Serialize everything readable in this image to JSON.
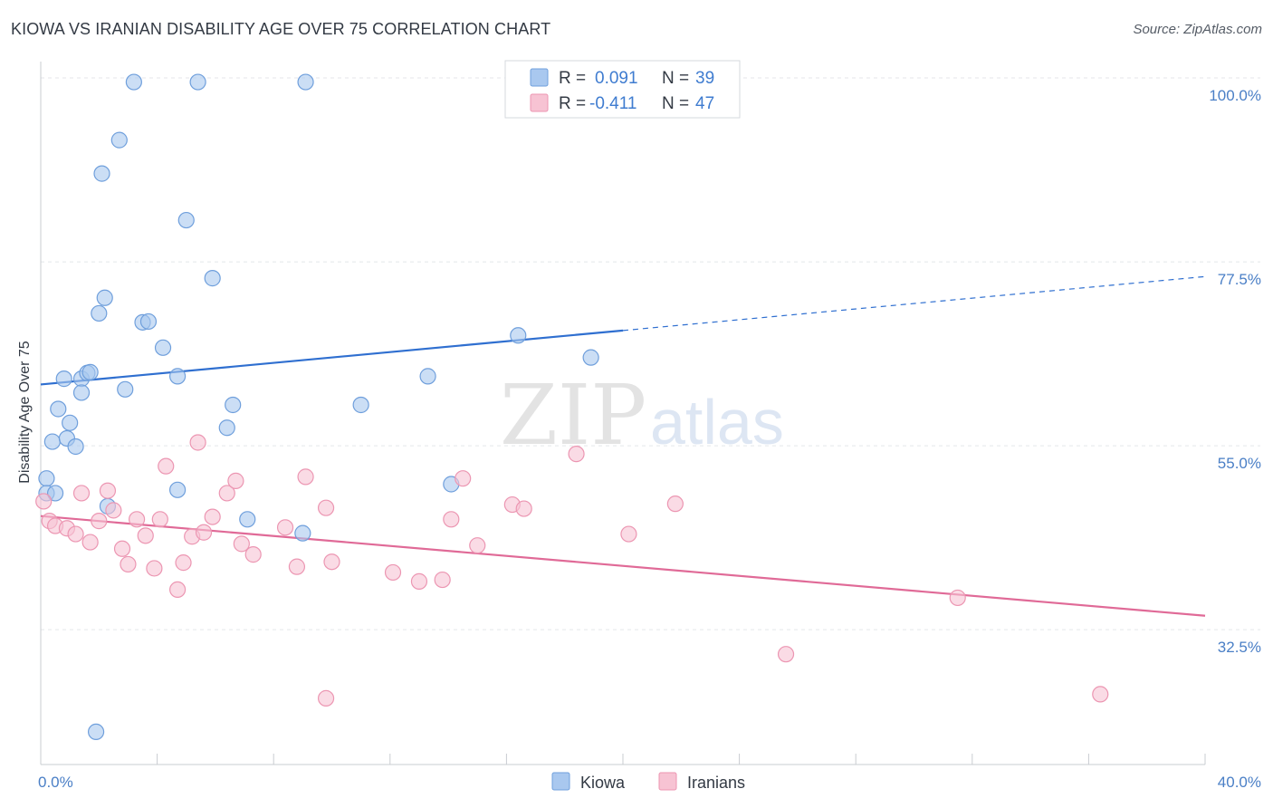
{
  "header": {
    "title": "KIOWA VS IRANIAN DISABILITY AGE OVER 75 CORRELATION CHART",
    "source": "Source: ZipAtlas.com"
  },
  "watermark": {
    "part1": "ZIP",
    "part2": "atlas"
  },
  "chart_data": {
    "type": "scatter",
    "title": "KIOWA VS IRANIAN DISABILITY AGE OVER 75 CORRELATION CHART",
    "xlabel": "",
    "ylabel": "Disability Age Over 75",
    "xlim": [
      0,
      40
    ],
    "ylim": [
      16,
      102
    ],
    "x_tick_labels": [
      "0.0%",
      "40.0%"
    ],
    "y_ticks": [
      32.5,
      55.0,
      77.5,
      100.0
    ],
    "y_tick_labels": [
      "32.5%",
      "55.0%",
      "77.5%",
      "100.0%"
    ],
    "grid": true,
    "legend_position": "top-center",
    "legend": [
      {
        "r_label": "R =",
        "r_value": "0.091",
        "n_label": "N =",
        "n_value": "39"
      },
      {
        "r_label": "R =",
        "r_value": "-0.411",
        "n_label": "N =",
        "n_value": "47"
      }
    ],
    "series": [
      {
        "name": "Kiowa",
        "color": "#a9c8ef",
        "stroke": "#6f9fdc",
        "line_color": "#2f6fd0",
        "trend": {
          "x0": 0,
          "y0": 62.5,
          "x1": 20,
          "y1": 69.1,
          "dash_x1": 40,
          "dash_y1": 75.7
        },
        "points": [
          [
            0.2,
            51.0
          ],
          [
            0.2,
            49.2
          ],
          [
            0.4,
            55.5
          ],
          [
            0.5,
            49.2
          ],
          [
            0.6,
            59.5
          ],
          [
            0.8,
            63.2
          ],
          [
            0.9,
            55.9
          ],
          [
            1.0,
            57.8
          ],
          [
            1.2,
            54.9
          ],
          [
            1.4,
            63.2
          ],
          [
            1.4,
            61.5
          ],
          [
            1.6,
            63.9
          ],
          [
            1.7,
            64.0
          ],
          [
            2.0,
            71.2
          ],
          [
            2.1,
            88.3
          ],
          [
            2.2,
            73.1
          ],
          [
            2.3,
            47.6
          ],
          [
            2.7,
            92.4
          ],
          [
            2.9,
            61.9
          ],
          [
            3.2,
            99.5
          ],
          [
            3.5,
            70.1
          ],
          [
            3.7,
            70.2
          ],
          [
            4.2,
            67.0
          ],
          [
            4.7,
            63.5
          ],
          [
            4.7,
            49.6
          ],
          [
            5.0,
            82.6
          ],
          [
            5.4,
            99.5
          ],
          [
            5.9,
            75.5
          ],
          [
            6.4,
            57.2
          ],
          [
            6.6,
            60.0
          ],
          [
            7.1,
            46.0
          ],
          [
            9.0,
            44.3
          ],
          [
            9.1,
            99.5
          ],
          [
            11.0,
            60.0
          ],
          [
            13.3,
            63.5
          ],
          [
            14.1,
            50.3
          ],
          [
            16.4,
            68.5
          ],
          [
            18.9,
            65.8
          ],
          [
            1.9,
            20.0
          ]
        ]
      },
      {
        "name": "Iranians",
        "color": "#f7c3d3",
        "stroke": "#ec96b2",
        "line_color": "#e06a97",
        "trend": {
          "x0": 0,
          "y0": 46.4,
          "x1": 40,
          "y1": 34.2
        },
        "points": [
          [
            0.1,
            48.2
          ],
          [
            0.3,
            45.8
          ],
          [
            0.5,
            45.2
          ],
          [
            0.9,
            44.9
          ],
          [
            1.2,
            44.2
          ],
          [
            1.4,
            49.2
          ],
          [
            1.7,
            43.2
          ],
          [
            2.0,
            45.8
          ],
          [
            2.3,
            49.5
          ],
          [
            2.5,
            47.1
          ],
          [
            2.8,
            42.4
          ],
          [
            3.0,
            40.5
          ],
          [
            3.3,
            46.0
          ],
          [
            3.6,
            44.0
          ],
          [
            3.9,
            40.0
          ],
          [
            4.1,
            46.0
          ],
          [
            4.3,
            52.5
          ],
          [
            4.7,
            37.4
          ],
          [
            4.9,
            40.7
          ],
          [
            5.2,
            43.9
          ],
          [
            5.4,
            55.4
          ],
          [
            5.6,
            44.4
          ],
          [
            5.9,
            46.3
          ],
          [
            6.4,
            49.2
          ],
          [
            6.7,
            50.7
          ],
          [
            6.9,
            43.0
          ],
          [
            7.3,
            41.7
          ],
          [
            8.4,
            45.0
          ],
          [
            8.8,
            40.2
          ],
          [
            9.1,
            51.2
          ],
          [
            9.8,
            47.4
          ],
          [
            10.0,
            40.8
          ],
          [
            9.8,
            24.1
          ],
          [
            12.1,
            39.5
          ],
          [
            13.0,
            38.4
          ],
          [
            13.8,
            38.6
          ],
          [
            14.1,
            46.0
          ],
          [
            14.5,
            51.0
          ],
          [
            15.0,
            42.8
          ],
          [
            16.2,
            47.8
          ],
          [
            16.6,
            47.3
          ],
          [
            18.4,
            54.0
          ],
          [
            20.2,
            44.2
          ],
          [
            21.8,
            47.9
          ],
          [
            25.6,
            29.5
          ],
          [
            31.5,
            36.4
          ],
          [
            36.4,
            24.6
          ]
        ]
      }
    ]
  }
}
